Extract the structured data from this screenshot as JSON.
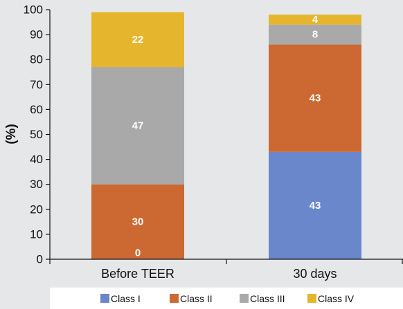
{
  "chart_data": {
    "type": "bar",
    "stacked": true,
    "categories": [
      "Before TEER",
      "30 days"
    ],
    "series": [
      {
        "name": "Class I",
        "color": "#6a87cb",
        "values": [
          0,
          43
        ],
        "labels": [
          "0",
          "43"
        ]
      },
      {
        "name": "Class II",
        "color": "#cc6831",
        "values": [
          30,
          43
        ],
        "labels": [
          "30",
          "43"
        ]
      },
      {
        "name": "Class III",
        "color": "#a9a9a9",
        "values": [
          47,
          8
        ],
        "labels": [
          "47",
          "8"
        ]
      },
      {
        "name": "Class IV",
        "color": "#e6b52e",
        "values": [
          22,
          4
        ],
        "labels": [
          "22",
          "4"
        ]
      }
    ],
    "ylabel": "(%)",
    "xlabel": "",
    "ylim": [
      0,
      100
    ],
    "yticks": [
      0,
      10,
      20,
      30,
      40,
      50,
      60,
      70,
      80,
      90,
      100
    ],
    "grid": false,
    "legend_position": "bottom"
  }
}
